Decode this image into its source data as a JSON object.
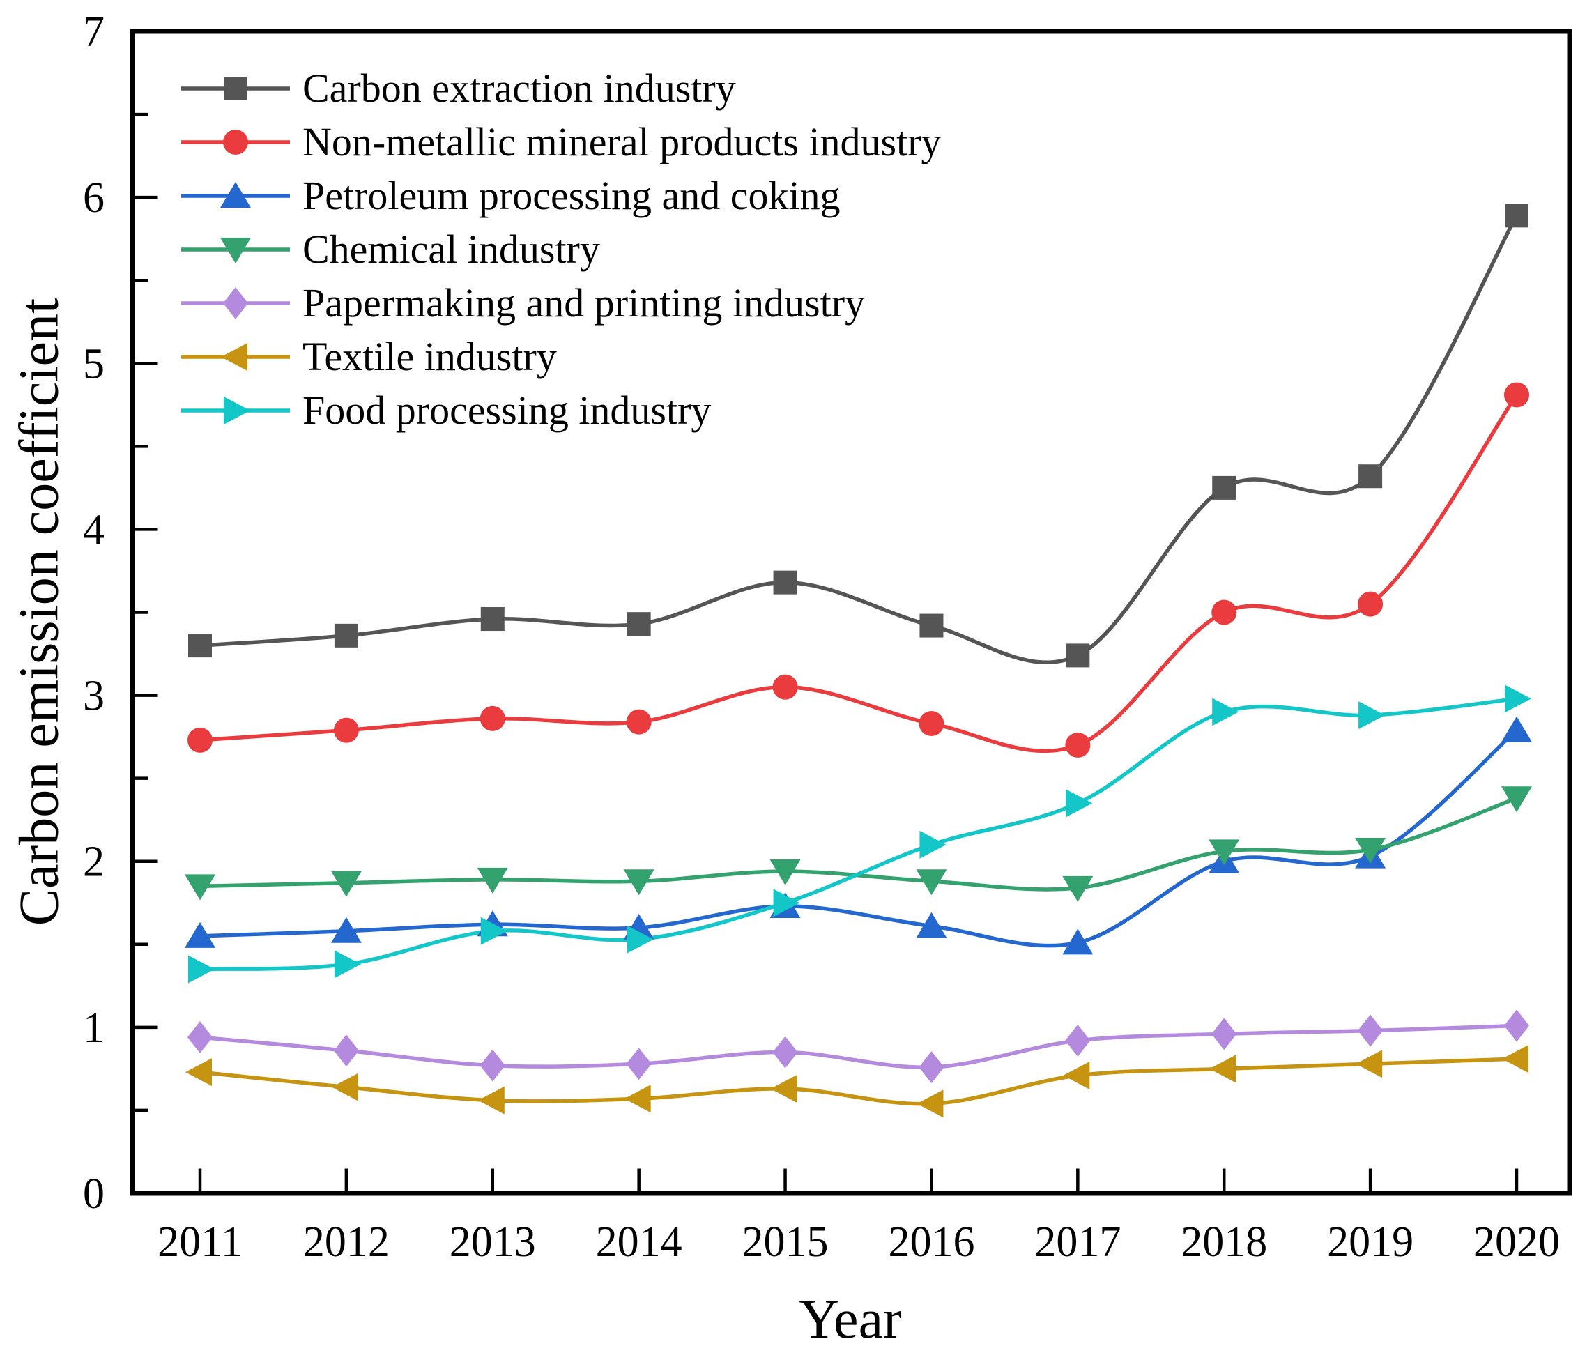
{
  "chart_data": {
    "type": "line",
    "title": "",
    "xlabel": "Year",
    "ylabel": "Carbon emission coefficient",
    "x": [
      "2011",
      "2012",
      "2013",
      "2014",
      "2015",
      "2016",
      "2017",
      "2018",
      "2019",
      "2020"
    ],
    "ylim": [
      0,
      7
    ],
    "yticks": [
      0,
      1,
      2,
      3,
      4,
      5,
      6,
      7
    ],
    "ytick_minor_step": 0.5,
    "grid": false,
    "legend_position": "top-left",
    "line_smoothing": "spline",
    "series": [
      {
        "name": "Carbon extraction industry",
        "color": "#555555",
        "marker": "square",
        "values": [
          3.3,
          3.36,
          3.46,
          3.43,
          3.68,
          3.42,
          3.24,
          4.25,
          4.32,
          5.89
        ]
      },
      {
        "name": "Non-metallic mineral products industry",
        "color": "#ea3b3e",
        "marker": "circle",
        "values": [
          2.73,
          2.79,
          2.86,
          2.84,
          3.05,
          2.83,
          2.7,
          3.5,
          3.55,
          4.81
        ]
      },
      {
        "name": "Petroleum processing and coking",
        "color": "#2367cf",
        "marker": "triangle-up",
        "values": [
          1.55,
          1.58,
          1.62,
          1.6,
          1.73,
          1.61,
          1.51,
          2.0,
          2.03,
          2.79
        ]
      },
      {
        "name": "Chemical industry",
        "color": "#34a26e",
        "marker": "triangle-down",
        "values": [
          1.85,
          1.87,
          1.89,
          1.88,
          1.94,
          1.88,
          1.84,
          2.06,
          2.07,
          2.38
        ]
      },
      {
        "name": "Papermaking and printing industry",
        "color": "#b48ade",
        "marker": "diamond",
        "values": [
          0.94,
          0.86,
          0.77,
          0.78,
          0.85,
          0.76,
          0.92,
          0.96,
          0.98,
          1.01
        ]
      },
      {
        "name": "Textile industry",
        "color": "#c69410",
        "marker": "triangle-left",
        "values": [
          0.73,
          0.64,
          0.56,
          0.57,
          0.63,
          0.54,
          0.71,
          0.75,
          0.78,
          0.81
        ]
      },
      {
        "name": "Food processing industry",
        "color": "#13c6c8",
        "marker": "triangle-right",
        "values": [
          1.35,
          1.38,
          1.58,
          1.53,
          1.75,
          2.1,
          2.35,
          2.9,
          2.88,
          2.98
        ]
      }
    ]
  }
}
